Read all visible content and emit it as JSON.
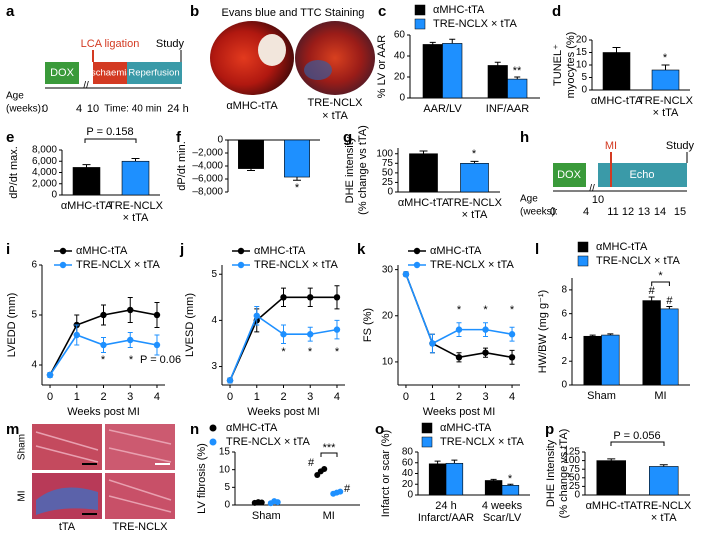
{
  "diagrams": {
    "a": {
      "panel": "a",
      "box1": "DOX",
      "event": "LCA ligation",
      "box2": "Ischaemia",
      "box3": "Reperfusion",
      "end": "Study",
      "axis_label": [
        "Age",
        "(weeks):"
      ],
      "ticks": [
        "0",
        "4",
        "10"
      ],
      "time": "Time: 40 min",
      "end_time": "24 h"
    },
    "b": {
      "panel": "b",
      "title": "Evans blue and TTC Staining",
      "labels": [
        [
          "αMHC-tTA"
        ],
        [
          "TRE-NCLX",
          "× tTA"
        ]
      ]
    },
    "h": {
      "panel": "h",
      "box1": "DOX",
      "event": "MI",
      "box2": "Echo",
      "end": "Study",
      "axis_label": [
        "Age",
        "(weeks):"
      ],
      "ticks": [
        "0",
        "4",
        "10",
        "11",
        "12",
        "13",
        "14",
        "15"
      ]
    },
    "m": {
      "panel": "m",
      "rows": [
        "Sham",
        "MI"
      ],
      "columns": [
        "tTA",
        "TRE-NCLX"
      ]
    }
  },
  "chart_data": [
    {
      "panel": "c",
      "type": "bar",
      "ylabel": "% LV or AAR",
      "categories": [
        [
          "AAR/LV"
        ],
        [
          "INF/AAR"
        ]
      ],
      "series": [
        {
          "name": "αMHC-tTA",
          "color": "#000000",
          "values": [
            51,
            31
          ],
          "errors": [
            2,
            3
          ]
        },
        {
          "name": "TRE-NCLX × tTA",
          "color": "#1e90ff",
          "values": [
            52,
            18
          ],
          "errors": [
            4,
            2
          ]
        }
      ],
      "ylim": [
        0,
        60
      ],
      "yticks": [
        0,
        20,
        40,
        60
      ],
      "annotations": [
        "**"
      ]
    },
    {
      "panel": "d",
      "type": "bar",
      "ylabel": [
        "TUNEL⁺",
        "myocytes (%)"
      ],
      "categories": [
        [
          "αMHC-tTA"
        ],
        [
          "TRE-NCLX",
          "× tTA"
        ]
      ],
      "values": [
        15,
        8
      ],
      "errors": [
        2,
        2
      ],
      "colors": [
        "#000000",
        "#1e90ff"
      ],
      "ylim": [
        0,
        20
      ],
      "yticks": [
        0,
        5,
        10,
        15,
        20
      ],
      "annotations": [
        "*"
      ]
    },
    {
      "panel": "e",
      "type": "bar",
      "ylabel": "dP/dt max.",
      "categories": [
        [
          "αMHC-tTA"
        ],
        [
          "TRE-NCLX",
          "× tTA"
        ]
      ],
      "values": [
        4900,
        6000
      ],
      "errors": [
        500,
        500
      ],
      "colors": [
        "#000000",
        "#1e90ff"
      ],
      "ylim": [
        0,
        8000
      ],
      "yticks": [
        0,
        {
          "value": 2000,
          "label": "2,000"
        },
        {
          "value": 4000,
          "label": "4,000"
        },
        {
          "value": 6000,
          "label": "6,000"
        },
        {
          "value": 8000,
          "label": "8,000"
        }
      ],
      "annotations": [
        "P = 0.158"
      ]
    },
    {
      "panel": "f",
      "type": "bar",
      "ylabel": "dP/dt min.",
      "values": [
        -4400,
        -5700
      ],
      "errors": [
        300,
        500
      ],
      "colors": [
        "#000000",
        "#1e90ff"
      ],
      "ylim": [
        -8000,
        0
      ],
      "yticks": [
        {
          "value": -8000,
          "label": "–8,000"
        },
        {
          "value": -6000,
          "label": "–6,000"
        },
        {
          "value": -4000,
          "label": "–4,000"
        },
        {
          "value": -2000,
          "label": "–2,000"
        },
        0
      ],
      "annotations": [
        "*"
      ]
    },
    {
      "panel": "g",
      "type": "bar",
      "ylabel": [
        "DHE intensity",
        "(% change vs tTA)"
      ],
      "categories": [
        [
          "αMHC-tTA"
        ],
        [
          "TRE-NCLX",
          "× tTA"
        ]
      ],
      "values": [
        100,
        75
      ],
      "errors": [
        7,
        5
      ],
      "colors": [
        "#000000",
        "#1e90ff"
      ],
      "ylim": [
        0,
        115
      ],
      "yticks": [
        0,
        25,
        50,
        75,
        100
      ],
      "annotations": [
        "*"
      ]
    },
    {
      "panel": "i",
      "type": "line",
      "ylabel": "LVEDD (mm)",
      "xlabel": "Weeks post MI",
      "x": [
        0,
        1,
        2,
        3,
        4
      ],
      "xlim": [
        -0.3,
        4.3
      ],
      "xticks": [
        0,
        1,
        2,
        3,
        4
      ],
      "series": [
        {
          "name": "αMHC-tTA",
          "color": "#000000",
          "values": [
            3.8,
            4.8,
            5.0,
            5.1,
            5.0
          ],
          "errors": [
            0.05,
            0.2,
            0.2,
            0.25,
            0.25
          ]
        },
        {
          "name": "TRE-NCLX × tTA",
          "color": "#1e90ff",
          "values": [
            3.8,
            4.6,
            4.4,
            4.5,
            4.4
          ],
          "errors": [
            0.05,
            0.2,
            0.15,
            0.15,
            0.2
          ]
        }
      ],
      "ylim": [
        3.6,
        6.0
      ],
      "yticks": [
        4,
        5,
        6
      ],
      "annotations": [
        "*",
        "*",
        "P = 0.06"
      ]
    },
    {
      "panel": "j",
      "type": "line",
      "ylabel": "LVESD (mm)",
      "xlabel": "Weeks post MI",
      "x": [
        0,
        1,
        2,
        3,
        4
      ],
      "xlim": [
        -0.3,
        4.3
      ],
      "xticks": [
        0,
        1,
        2,
        3,
        4
      ],
      "series": [
        {
          "name": "αMHC-tTA",
          "color": "#000000",
          "values": [
            2.7,
            4.0,
            4.5,
            4.5,
            4.5
          ],
          "errors": [
            0.05,
            0.25,
            0.2,
            0.2,
            0.25
          ]
        },
        {
          "name": "TRE-NCLX × tTA",
          "color": "#1e90ff",
          "values": [
            2.7,
            4.1,
            3.7,
            3.7,
            3.8
          ],
          "errors": [
            0.05,
            0.2,
            0.2,
            0.15,
            0.2
          ]
        }
      ],
      "ylim": [
        2.6,
        5.2
      ],
      "yticks": [
        3,
        4,
        5
      ],
      "annotations": [
        "*",
        "*",
        "*"
      ]
    },
    {
      "panel": "k",
      "type": "line",
      "ylabel": "FS (%)",
      "xlabel": "Weeks post MI",
      "x": [
        0,
        1,
        2,
        3,
        4
      ],
      "xlim": [
        -0.3,
        4.3
      ],
      "xticks": [
        0,
        1,
        2,
        3,
        4
      ],
      "series": [
        {
          "name": "αMHC-tTA",
          "color": "#000000",
          "values": [
            29,
            14,
            11,
            12,
            11
          ],
          "errors": [
            0.5,
            2,
            1,
            1,
            1.5
          ]
        },
        {
          "name": "TRE-NCLX × tTA",
          "color": "#1e90ff",
          "values": [
            29,
            14,
            17,
            17,
            16
          ],
          "errors": [
            0.5,
            2,
            1.5,
            1.5,
            1.5
          ]
        }
      ],
      "ylim": [
        5,
        31
      ],
      "yticks": [
        10,
        20,
        30
      ],
      "annotations": [
        "*",
        "*",
        "*"
      ]
    },
    {
      "panel": "l",
      "type": "bar",
      "ylabel": "HW/BW (mg g⁻¹)",
      "categories": [
        [
          "Sham"
        ],
        [
          "MI"
        ]
      ],
      "series": [
        {
          "name": "αMHC-tTA",
          "color": "#000000",
          "values": [
            4.1,
            7.1
          ],
          "errors": [
            0.1,
            0.3
          ]
        },
        {
          "name": "TRE-NCLX × tTA",
          "color": "#1e90ff",
          "values": [
            4.2,
            6.4
          ],
          "errors": [
            0.1,
            0.2
          ]
        }
      ],
      "ylim": [
        0,
        9
      ],
      "yticks": [
        0,
        2,
        4,
        6,
        8
      ],
      "annotations": [
        "#",
        "#",
        "*"
      ]
    },
    {
      "panel": "n",
      "type": "dot",
      "ylabel": "LV fibrosis (%)",
      "categories": [
        [
          "Sham"
        ],
        [
          "MI"
        ]
      ],
      "series": [
        {
          "name": "αMHC-tTA",
          "color": "#000000",
          "values": [
            [
              0.6,
              0.8,
              0.7
            ],
            [
              8.5,
              9.5,
              10.2
            ]
          ]
        },
        {
          "name": "TRE-NCLX × tTA",
          "color": "#1e90ff",
          "values": [
            [
              0.5,
              1.1,
              0.8
            ],
            [
              3.2,
              3.5,
              3.8
            ]
          ]
        }
      ],
      "ylim": [
        0,
        15
      ],
      "yticks": [
        0,
        5,
        10,
        15
      ],
      "annotations": [
        "#",
        "#",
        "***"
      ]
    },
    {
      "panel": "o",
      "type": "bar",
      "ylabel": "Infarct or scar (%)",
      "categories": [
        [
          "24 h",
          "Infarct/AAR"
        ],
        [
          "4 weeks",
          "Scar/LV"
        ]
      ],
      "series": [
        {
          "name": "αMHC-tTA",
          "color": "#000000",
          "values": [
            58,
            27
          ],
          "errors": [
            5,
            2
          ]
        },
        {
          "name": "TRE-NCLX × tTA",
          "color": "#1e90ff",
          "values": [
            59,
            18
          ],
          "errors": [
            6,
            2
          ]
        }
      ],
      "ylim": [
        0,
        80
      ],
      "yticks": [
        0,
        20,
        40,
        60,
        80
      ],
      "annotations": [
        "*"
      ]
    },
    {
      "panel": "p",
      "type": "bar",
      "ylabel": [
        "DHE Intensity",
        "(% change vs tTA)"
      ],
      "categories": [
        [
          "αMHC-tTA"
        ],
        [
          "TRE-NCLX",
          "× tTA"
        ]
      ],
      "values": [
        100,
        83
      ],
      "errors": [
        5,
        5
      ],
      "colors": [
        "#000000",
        "#1e90ff"
      ],
      "ylim": [
        0,
        125
      ],
      "yticks": [
        0,
        25,
        50,
        75,
        100,
        125
      ],
      "annotations": [
        "P = 0.056"
      ]
    }
  ]
}
